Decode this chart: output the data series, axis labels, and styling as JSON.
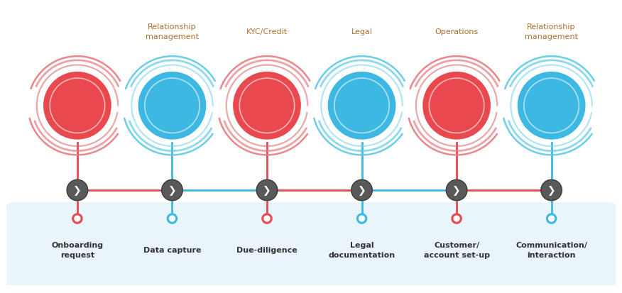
{
  "steps": [
    {
      "label": "Onboarding\nrequest",
      "color": "red",
      "dept": ""
    },
    {
      "label": "Data capture",
      "color": "blue",
      "dept": "Relationship\nmanagement"
    },
    {
      "label": "Due-diligence",
      "color": "red",
      "dept": "KYC/Credit"
    },
    {
      "label": "Legal\ndocumentation",
      "color": "blue",
      "dept": "Legal"
    },
    {
      "label": "Customer/\naccount set-up",
      "color": "red",
      "dept": "Operations"
    },
    {
      "label": "Communication/\ninteraction",
      "color": "blue",
      "dept": "Relationship\nmanagement"
    }
  ],
  "red_main": "#E8484E",
  "blue_main": "#3DB8E3",
  "red_inner": "#D97070",
  "blue_inner": "#7DD4EC",
  "red_outer": "#E87A7E",
  "blue_outer": "#5DC8E8",
  "red_line": "#E8484E",
  "blue_line": "#3DB8E3",
  "chevron_bg": "#595959",
  "dept_color": "#B07030",
  "label_color": "#333333",
  "box_color": "#EAF5FB",
  "white": "#FFFFFF",
  "fig_w": 8.76,
  "fig_h": 4.14,
  "dpi": 100
}
